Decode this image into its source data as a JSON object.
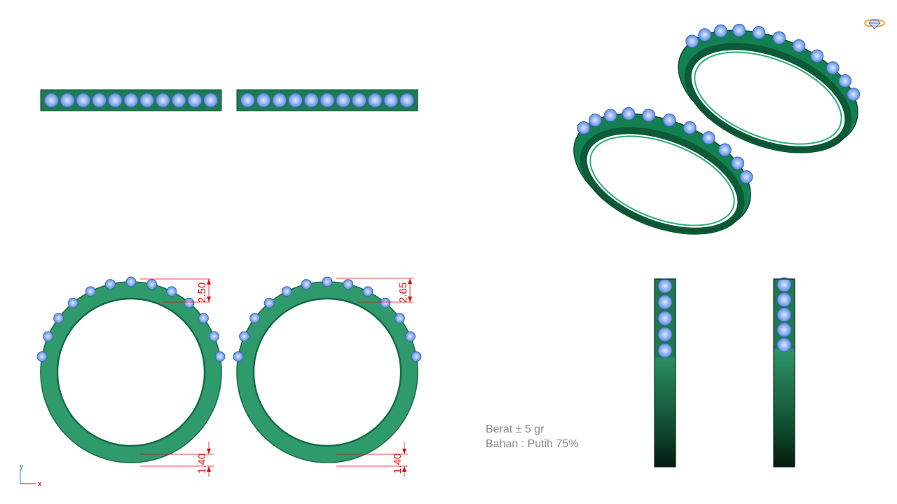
{
  "notes": {
    "weight": "Berat ± 5 gr",
    "material": "Bahan : Putih 75%"
  },
  "dimensions": {
    "ring1_stone_height": "2.50",
    "ring2_stone_height": "2.65",
    "ring1_band_thickness": "1.40",
    "ring2_band_thickness": "1.40"
  },
  "axis": {
    "y_label": "y",
    "x_label": "x"
  },
  "colors": {
    "metal": "#2f9a6c",
    "metal_dark": "#136b44",
    "stone": "#86aef2",
    "stone_dark": "#3f63b8",
    "dimension": "#e01010",
    "axis_y": "#1a8fa8",
    "axis_x": "#c41a1a"
  },
  "icons": {
    "logo": "diamond-ring-icon"
  }
}
